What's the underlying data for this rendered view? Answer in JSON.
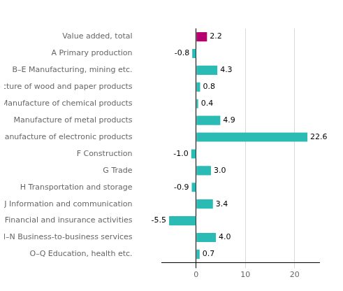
{
  "chart_data": {
    "type": "bar",
    "orientation": "horizontal",
    "categories": [
      "O–Q Education, health etc.",
      "M–N Business-to-business services",
      "K Financial and insurance activities",
      "J Information and communication",
      "H Transportation and storage",
      "G Trade",
      "F Construction",
      "Manufacture of electronic products",
      "Manufacture of metal products",
      "Manufacture of chemical products",
      "Manufacture of wood and paper products",
      "B–E Manufacturing, mining etc.",
      "A Primary production",
      "Value added, total"
    ],
    "values": [
      0.7,
      4.0,
      -5.5,
      3.4,
      -0.9,
      3.0,
      -1.0,
      22.6,
      4.9,
      0.4,
      0.8,
      4.3,
      -0.8,
      2.2
    ],
    "value_labels": [
      "0.7",
      "4.0",
      "-5.5",
      "3.4",
      "-0.9",
      "3.0",
      "-1.0",
      "22.6",
      "4.9",
      "0.4",
      "0.8",
      "4.3",
      "-0.8",
      "2.2"
    ],
    "colors": [
      "#2abcb4",
      "#2abcb4",
      "#2abcb4",
      "#2abcb4",
      "#2abcb4",
      "#2abcb4",
      "#2abcb4",
      "#2abcb4",
      "#2abcb4",
      "#2abcb4",
      "#2abcb4",
      "#2abcb4",
      "#2abcb4",
      "#b5006e"
    ],
    "xlim": [
      -7,
      25
    ],
    "xticks": [
      0,
      10,
      20
    ],
    "grid": true,
    "data_labels": true
  }
}
